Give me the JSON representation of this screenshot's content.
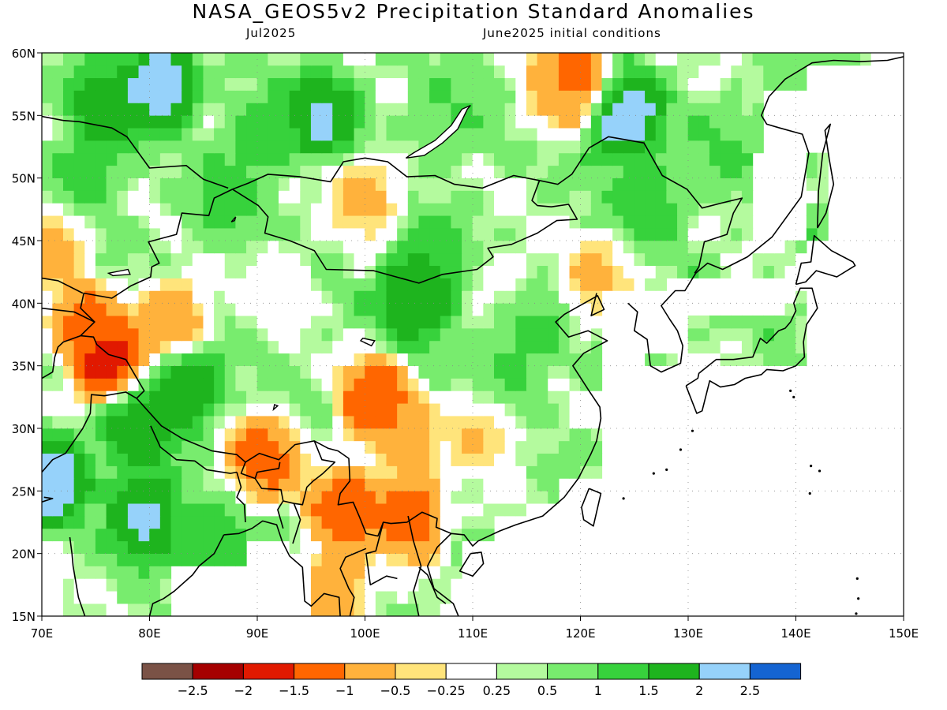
{
  "header": {
    "title": "NASA_GEOS5v2 Precipitation Standard Anomalies",
    "left_subtitle": "Jul2025",
    "right_subtitle": "June2025 initial conditions"
  },
  "map": {
    "lon_range": [
      70,
      150
    ],
    "lat_range": [
      15,
      60
    ],
    "lon_ticks": [
      "70E",
      "80E",
      "90E",
      "100E",
      "110E",
      "120E",
      "130E",
      "140E",
      "150E"
    ],
    "lat_ticks": [
      "15N",
      "20N",
      "25N",
      "30N",
      "35N",
      "40N",
      "45N",
      "50N",
      "55N",
      "60N"
    ],
    "no_data_region": "eastern ocean / Pacific east of ~122E south of 45N",
    "anomaly_features": [
      {
        "lon": 76,
        "lat": 35.5,
        "value": -2.2
      },
      {
        "lon": 74,
        "lat": 38.5,
        "value": -1.3
      },
      {
        "lon": 82,
        "lat": 38.5,
        "value": -1.2
      },
      {
        "lon": 71,
        "lat": 45,
        "value": -0.8
      },
      {
        "lon": 101,
        "lat": 32,
        "value": -1.8
      },
      {
        "lon": 104,
        "lat": 29,
        "value": -0.8
      },
      {
        "lon": 111,
        "lat": 30,
        "value": -0.7
      },
      {
        "lon": 98,
        "lat": 23.5,
        "value": -1.6
      },
      {
        "lon": 104,
        "lat": 23,
        "value": -1.6
      },
      {
        "lon": 100,
        "lat": 48.5,
        "value": -0.8
      },
      {
        "lon": 119.5,
        "lat": 58,
        "value": -1.7
      },
      {
        "lon": 118,
        "lat": 57,
        "value": -0.7
      },
      {
        "lon": 113,
        "lat": 41.5,
        "value": 0.0
      },
      {
        "lon": 92,
        "lat": 42,
        "value": 0.0
      },
      {
        "lon": 121.5,
        "lat": 42,
        "value": -0.7
      },
      {
        "lon": 90.5,
        "lat": 27.5,
        "value": -1.5
      },
      {
        "lon": 97,
        "lat": 17,
        "value": -1.2
      },
      {
        "lon": 83.5,
        "lat": 33.5,
        "value": 2.2
      },
      {
        "lon": 79,
        "lat": 30,
        "value": 2.1
      },
      {
        "lon": 71,
        "lat": 26,
        "value": 2.6
      },
      {
        "lon": 79.5,
        "lat": 23,
        "value": 2.4
      },
      {
        "lon": 81,
        "lat": 57.5,
        "value": 2.6
      },
      {
        "lon": 76,
        "lat": 55.5,
        "value": 2.1
      },
      {
        "lon": 96,
        "lat": 55,
        "value": 2.3
      },
      {
        "lon": 124,
        "lat": 55,
        "value": 2.7
      },
      {
        "lon": 105,
        "lat": 40.5,
        "value": 2.3
      },
      {
        "lon": 106,
        "lat": 43,
        "value": 1.6
      },
      {
        "lon": 126,
        "lat": 48,
        "value": 1.4
      },
      {
        "lon": 115,
        "lat": 38.5,
        "value": 1.3
      },
      {
        "lon": 87,
        "lat": 48,
        "value": 1.2
      },
      {
        "lon": 113,
        "lat": 34,
        "value": 1.2
      },
      {
        "lon": 74,
        "lat": 50,
        "value": 1.3
      },
      {
        "lon": 133,
        "lat": 52,
        "value": 1.1
      },
      {
        "lon": 90,
        "lat": 53,
        "value": 1.3
      },
      {
        "lon": 108,
        "lat": 55,
        "value": 1.1
      },
      {
        "lon": 86,
        "lat": 21,
        "value": 1.4
      },
      {
        "lon": 140,
        "lat": 56,
        "value": 0.8
      }
    ]
  },
  "colorbar": {
    "colors": [
      "#7a5246",
      "#a50000",
      "#e11900",
      "#ff6600",
      "#ffb23c",
      "#ffe47b",
      "#ffffff",
      "#b4fa9e",
      "#78ec6e",
      "#37d23c",
      "#1eb41e",
      "#96d2fa",
      "#1464d2"
    ],
    "boundaries": [
      -2.5,
      -2,
      -1.5,
      -1,
      -0.5,
      -0.25,
      0.25,
      0.5,
      1,
      1.5,
      2,
      2.5
    ],
    "labels": [
      "−2.5",
      "−2",
      "−1.5",
      "−1",
      "−0.5",
      "−0.25",
      "0.25",
      "0.5",
      "1",
      "1.5",
      "2",
      "2.5"
    ]
  }
}
